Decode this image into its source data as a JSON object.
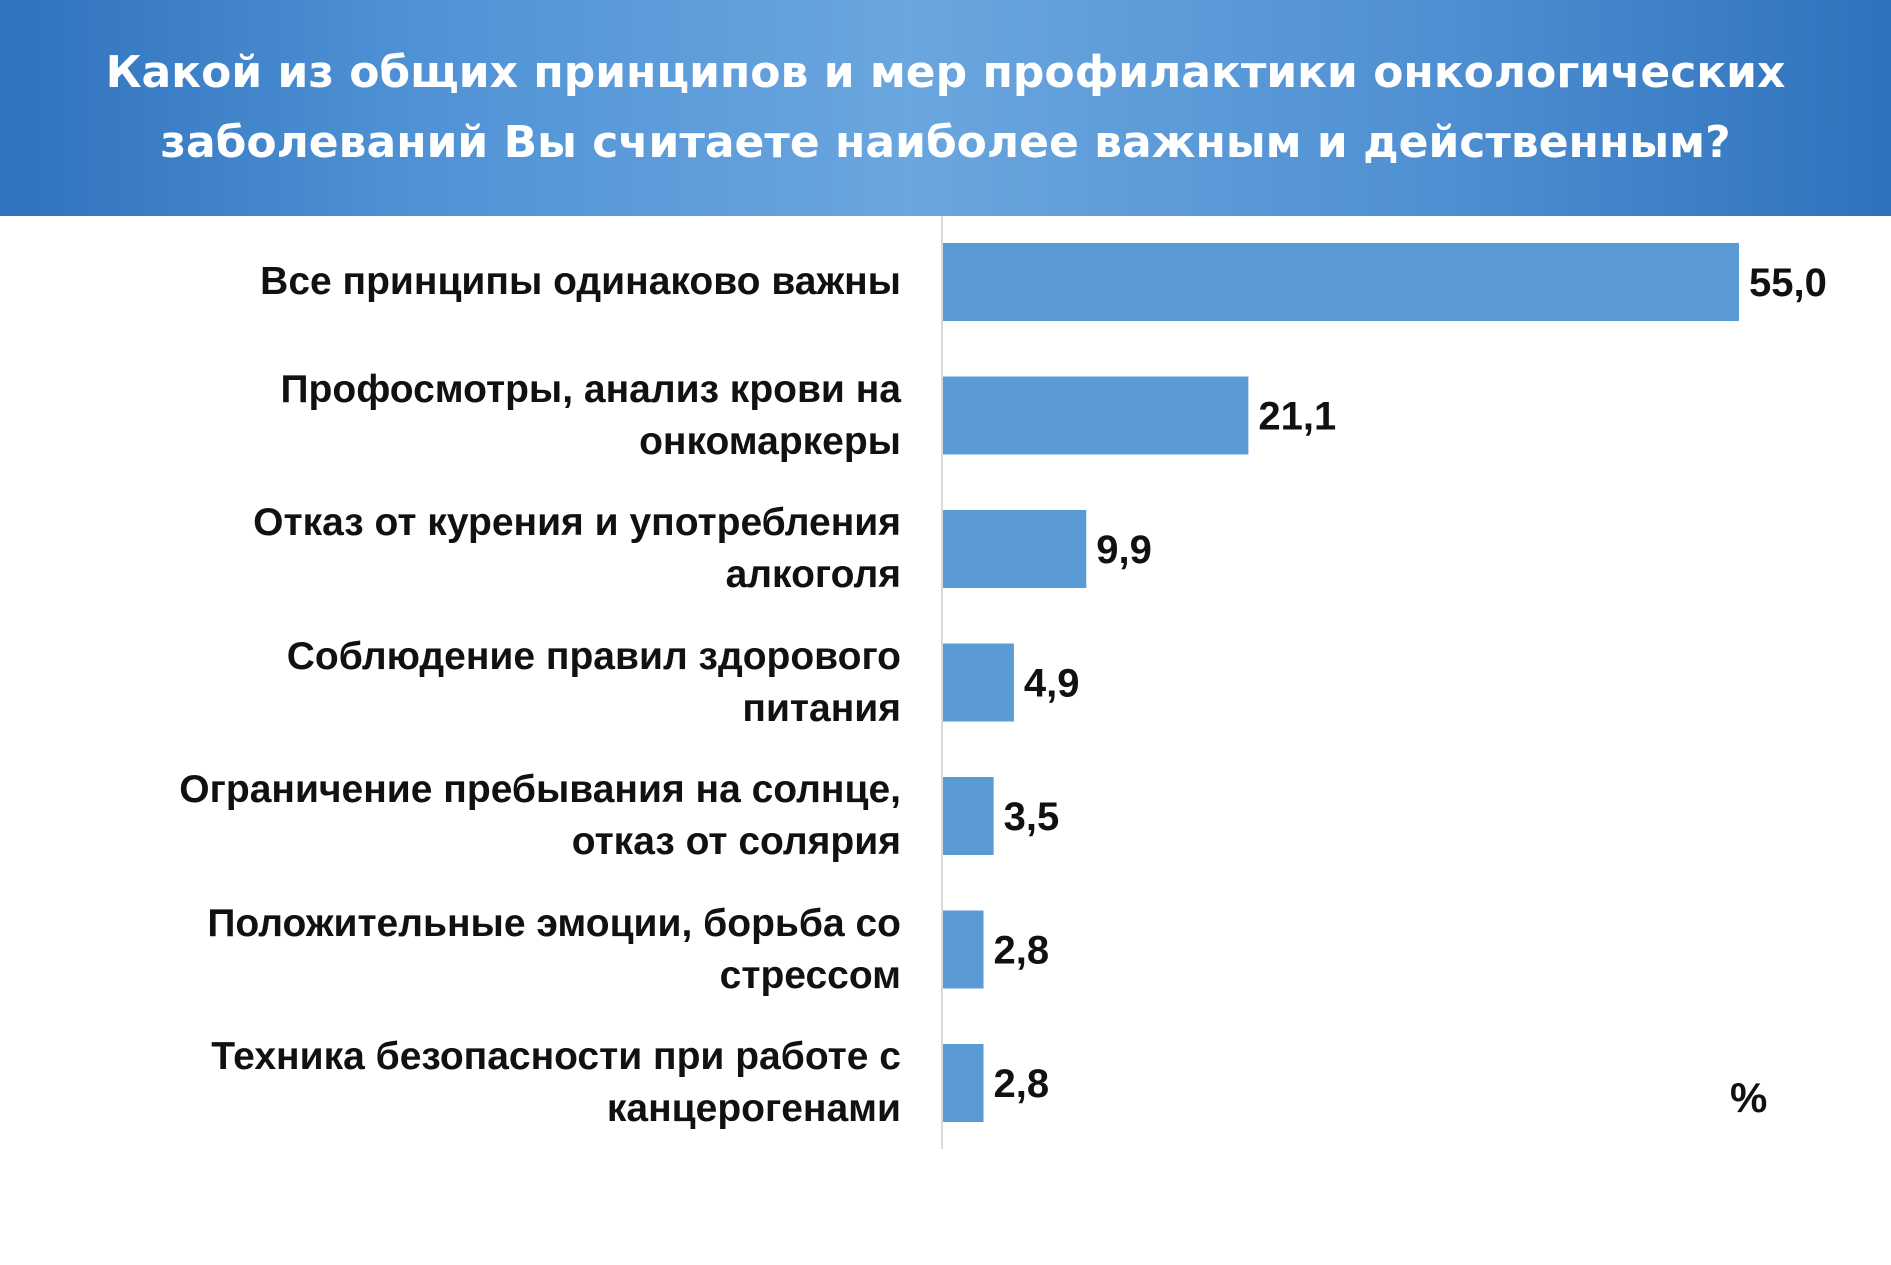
{
  "header": {
    "title_line1": "Какой из общих принципов и мер профилактики онкологических",
    "title_line2": "заболеваний Вы считаете наиболее важным и действенным?"
  },
  "chart_data": {
    "type": "bar",
    "orientation": "horizontal",
    "title": "Какой из общих принципов и мер профилактики онкологических заболеваний Вы считаете наиболее важным и действенным?",
    "unit_label": "%",
    "categories": [
      [
        "Все принципы одинаково важны"
      ],
      [
        "Профосмотры, анализ крови на",
        "онкомаркеры"
      ],
      [
        "Отказ от курения и употребления",
        "алкоголя"
      ],
      [
        "Соблюдение правил здорового",
        "питания"
      ],
      [
        "Ограничение пребывания на солнце,",
        "отказ от солярия"
      ],
      [
        "Положительные эмоции, борьба со",
        "стрессом"
      ],
      [
        "Техника безопасности при работе с",
        "канцерогенами"
      ]
    ],
    "values": [
      55.0,
      21.1,
      9.9,
      4.9,
      3.5,
      2.8,
      2.8
    ],
    "value_labels": [
      "55,0",
      "21,1",
      "9,9",
      "4,9",
      "3,5",
      "2,8",
      "2,8"
    ],
    "xlim": [
      0,
      55
    ],
    "grid": false,
    "legend": "none",
    "bar_color": "#5b9bd5",
    "axis_color": "#d9d9d9"
  }
}
